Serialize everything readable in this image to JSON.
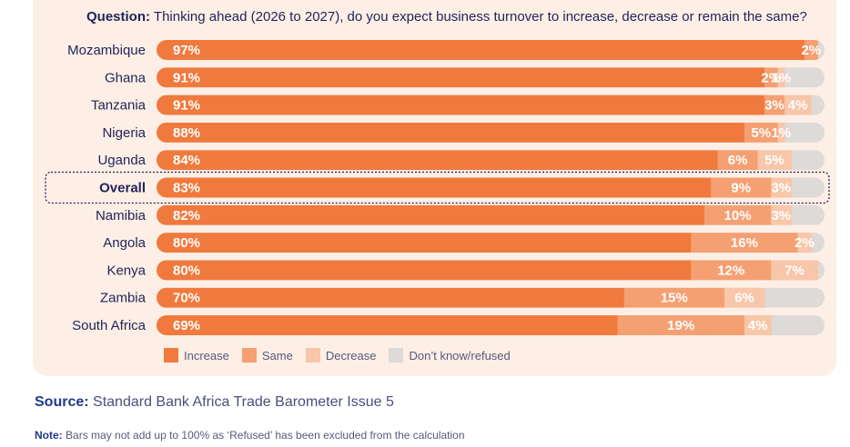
{
  "question": {
    "label": "Question:",
    "text": "Thinking ahead (2026 to 2027), do you expect business turnover to increase, decrease or remain the same?"
  },
  "colors": {
    "increase": "#f07a3e",
    "same": "#f5a072",
    "decrease": "#f8c6a8",
    "dont_know": "#dedad8"
  },
  "chart_data": {
    "type": "bar",
    "orientation": "horizontal",
    "stacked": true,
    "categories": [
      "Mozambique",
      "Ghana",
      "Tanzania",
      "Nigeria",
      "Uganda",
      "Overall",
      "Namibia",
      "Angola",
      "Kenya",
      "Zambia",
      "South Africa"
    ],
    "highlighted_category": "Overall",
    "series": [
      {
        "name": "Increase",
        "key": "increase",
        "values": [
          97,
          91,
          91,
          88,
          84,
          83,
          82,
          80,
          80,
          70,
          69
        ]
      },
      {
        "name": "Same",
        "key": "same",
        "values": [
          2,
          2,
          3,
          5,
          6,
          9,
          10,
          16,
          12,
          15,
          19
        ]
      },
      {
        "name": "Decrease",
        "key": "decrease",
        "values": [
          null,
          1,
          4,
          1,
          5,
          3,
          3,
          2,
          7,
          6,
          4
        ]
      },
      {
        "name": "Don't know/refused",
        "key": "dont_know",
        "values": [
          null,
          null,
          null,
          null,
          null,
          null,
          null,
          null,
          null,
          null,
          null
        ]
      }
    ],
    "xlim": [
      0,
      100
    ],
    "value_suffix": "%"
  },
  "legend": [
    "Increase",
    "Same",
    "Decrease",
    "Don’t know/refused"
  ],
  "source": {
    "label": "Source:",
    "text": "Standard Bank Africa Trade Barometer Issue 5"
  },
  "note": {
    "label": "Note:",
    "text": "Bars may not add up to 100% as ‘Refused’ has been excluded from the calculation"
  }
}
